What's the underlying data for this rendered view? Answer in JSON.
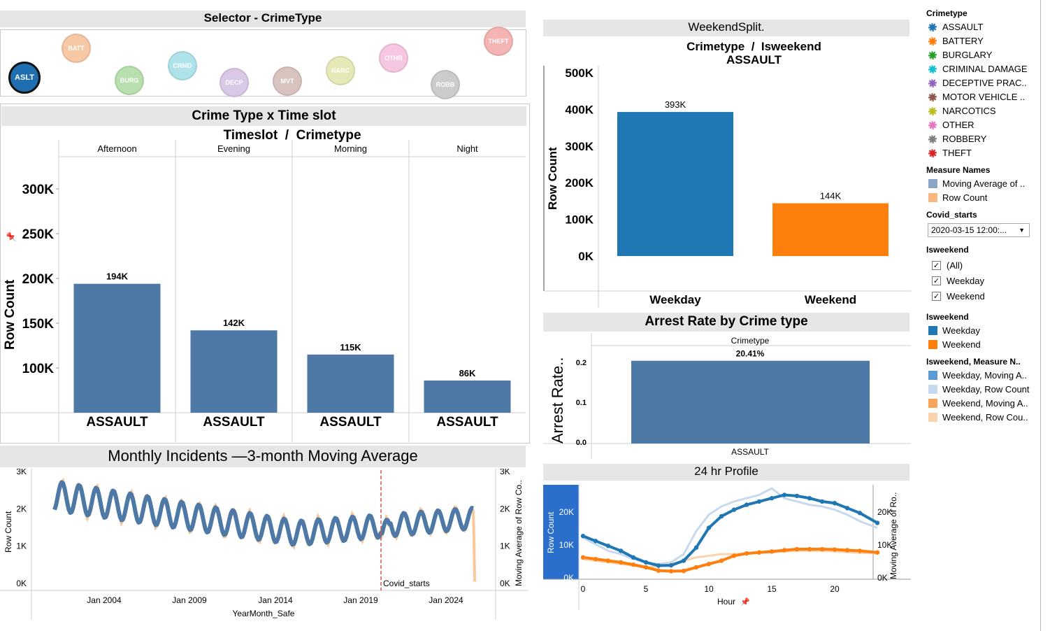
{
  "selector": {
    "title": "Selector - CrimeType",
    "bubbles": [
      {
        "label": "ASLT",
        "color": "#1f6fb0",
        "selected": true
      },
      {
        "label": "BATT",
        "color": "#f7c8a6"
      },
      {
        "label": "BURG",
        "color": "#b8dfae"
      },
      {
        "label": "CRMD",
        "color": "#aee3ea"
      },
      {
        "label": "DECP",
        "color": "#d9c8e6"
      },
      {
        "label": "MVT",
        "color": "#d8c3bf"
      },
      {
        "label": "NARC",
        "color": "#e6e9b7"
      },
      {
        "label": "OTHR",
        "color": "#f7c6e2"
      },
      {
        "label": "ROBB",
        "color": "#cccccc"
      },
      {
        "label": "THEFT",
        "color": "#f5b4b4"
      }
    ]
  },
  "timeslot_chart": {
    "band_title": "Crime Type x Time slot",
    "header": "Timeslot  /  Crimetype",
    "ylabel": "Row Count",
    "yticks": [
      "100K",
      "150K",
      "200K",
      "250K",
      "300K"
    ],
    "columns": [
      "Afternoon",
      "Evening",
      "Morning",
      "Night"
    ],
    "category": "ASSAULT",
    "value_labels": [
      "194K",
      "142K",
      "115K",
      "86K"
    ],
    "color": "#4e79a7"
  },
  "weekend_chart": {
    "band_title": "WeekendSplit.",
    "header_line1": "Crimetype  /  Isweekend",
    "header_line2": "ASSAULT",
    "ylabel": "Row Count",
    "yticks": [
      "0K",
      "100K",
      "200K",
      "300K",
      "400K",
      "500K"
    ],
    "categories": [
      "Weekday",
      "Weekend"
    ],
    "value_labels": [
      "393K",
      "144K"
    ],
    "colors": [
      "#1f77b4",
      "#ff7f0e"
    ]
  },
  "arrest_chart": {
    "band_title": "Arrest Rate by Crime type",
    "header": "Crimetype",
    "ylabel": "Arrest Rate..",
    "yticks": [
      "0.0",
      "0.1",
      "0.2"
    ],
    "category": "ASSAULT",
    "value_label": "20.41%",
    "color": "#4e79a7"
  },
  "monthly_chart": {
    "band_title": "Monthly Incidents —3-month Moving Average",
    "ylabel_left": "Row Count",
    "ylabel_right": "Moving Average of Row Co..",
    "yticks_left": [
      "0K",
      "1K",
      "2K",
      "3K"
    ],
    "yticks_right": [
      "0K",
      "1K",
      "2K",
      "3K"
    ],
    "xticks": [
      "Jan 2004",
      "Jan 2009",
      "Jan 2014",
      "Jan 2019",
      "Jan 2024"
    ],
    "xlabel": "YearMonth_Safe",
    "annotation": "Covid_starts",
    "line_color": "#4e79a7",
    "raw_color": "#f8c89b",
    "marker_color": "#d9534f"
  },
  "hourly_chart": {
    "band_title": "24 hr Profile",
    "ylabel_left": "Row Count",
    "ylabel_right": "Moving Average of Ro..",
    "yticks_left": [
      "0K",
      "10K",
      "20K"
    ],
    "yticks_right": [
      "0K",
      "10K",
      "20K"
    ],
    "xticks": [
      "0",
      "5",
      "10",
      "15",
      "20"
    ],
    "xlabel": "Hour",
    "weekday_color": "#1f77b4",
    "weekend_color": "#ff7f0e"
  },
  "legend": {
    "crimetype_title": "Crimetype",
    "crimetypes": [
      {
        "label": "ASSAULT",
        "color": "#1f77b4"
      },
      {
        "label": "BATTERY",
        "color": "#ff7f0e"
      },
      {
        "label": "BURGLARY",
        "color": "#2ca02c"
      },
      {
        "label": "CRIMINAL DAMAGE",
        "color": "#17becf"
      },
      {
        "label": "DECEPTIVE PRAC..",
        "color": "#9467bd"
      },
      {
        "label": "MOTOR VEHICLE ..",
        "color": "#8c564b"
      },
      {
        "label": "NARCOTICS",
        "color": "#bcbd22"
      },
      {
        "label": "OTHER",
        "color": "#e377c2"
      },
      {
        "label": "ROBBERY",
        "color": "#7f7f7f"
      },
      {
        "label": "THEFT",
        "color": "#d62728"
      }
    ],
    "measure_title": "Measure Names",
    "measures": [
      {
        "label": "Moving Average of ..",
        "color": "#8ba5c6"
      },
      {
        "label": "Row Count",
        "color": "#f8b880"
      }
    ],
    "covid_title": "Covid_starts",
    "covid_value": "2020-03-15 12:00:...",
    "isweekend_filter_title": "Isweekend",
    "isweekend_filter": [
      {
        "label": "(All)",
        "checked": true
      },
      {
        "label": "Weekday",
        "checked": true
      },
      {
        "label": "Weekend",
        "checked": true
      }
    ],
    "isweekend_color_title": "Isweekend",
    "isweekend_colors": [
      {
        "label": "Weekday",
        "color": "#1f77b4"
      },
      {
        "label": "Weekend",
        "color": "#ff7f0e"
      }
    ],
    "combo_title": "Isweekend, Measure N..",
    "combos": [
      {
        "label": "Weekday, Moving A..",
        "color": "#5b9bd5"
      },
      {
        "label": "Weekday, Row Count",
        "color": "#c6d9ef"
      },
      {
        "label": "Weekend, Moving A..",
        "color": "#f9a25a"
      },
      {
        "label": "Weekend, Row Cou..",
        "color": "#fbd3ae"
      }
    ]
  }
}
